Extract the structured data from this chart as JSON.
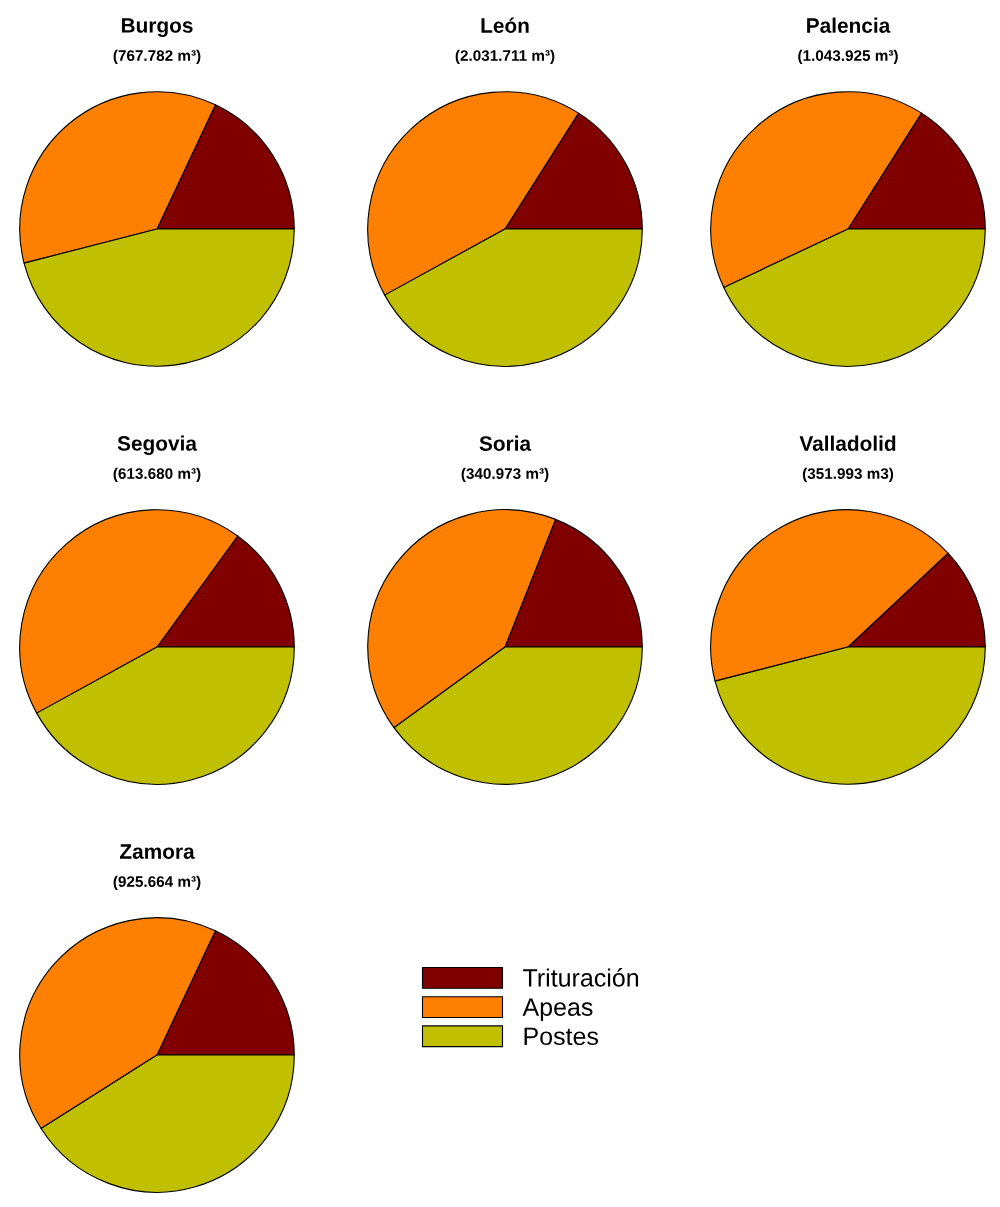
{
  "chart_data": [
    {
      "type": "pie",
      "title": "Burgos",
      "subtitle": "(767.782 m³)",
      "categories": [
        "Trituración",
        "Apeas",
        "Postes"
      ],
      "values": [
        18,
        36,
        46
      ],
      "colors": [
        "#800000",
        "#ff8000",
        "#c0c000"
      ],
      "legend": "bottom right"
    },
    {
      "type": "pie",
      "title": "León",
      "subtitle": "(2.031.711 m³)",
      "categories": [
        null,
        null,
        null
      ],
      "values": [
        16,
        42,
        42
      ],
      "colors": [
        "#800000",
        "#ff8000",
        "#c0c000"
      ]
    },
    {
      "type": "pie",
      "title": "Palencia",
      "subtitle": "(1.043.925 m³)",
      "categories": [
        null,
        null,
        null
      ],
      "values": [
        16,
        41,
        43
      ],
      "colors": [
        "#800000",
        "#ff8000",
        "#c0c000"
      ]
    },
    {
      "type": "pie",
      "title": "Segovia",
      "subtitle": "(613.680 m³)",
      "categories": [
        null,
        null,
        null
      ],
      "values": [
        15,
        43,
        42
      ],
      "colors": [
        "#800000",
        "#ff8000",
        "#c0c000"
      ]
    },
    {
      "type": "pie",
      "title": "Soria",
      "subtitle": "(340.973 m³)",
      "categories": [
        null,
        null,
        null
      ],
      "values": [
        19,
        41,
        40
      ],
      "colors": [
        "#800000",
        "#ff8000",
        "#c0c000"
      ]
    },
    {
      "type": "pie",
      "title": "Valladolid",
      "subtitle": "(351.993 m3)",
      "categories": [
        null,
        null,
        null
      ],
      "values": [
        12,
        42,
        46
      ],
      "colors": [
        "#800000",
        "#ff8000",
        "#c0c000"
      ]
    },
    {
      "type": "pie",
      "title": "Zamora",
      "subtitle": "(925.664 m³)",
      "categories": [
        null,
        null,
        null
      ],
      "values": [
        18,
        41,
        41
      ],
      "colors": [
        "#800000",
        "#ff8000",
        "#c0c000"
      ]
    }
  ]
}
